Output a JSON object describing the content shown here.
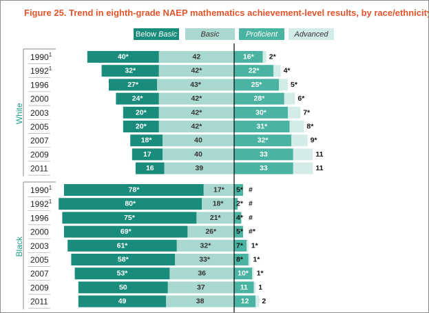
{
  "title": "Figure 25.  Trend in eighth-grade NAEP mathematics achievement-level results, by race/ethnicity",
  "legend": [
    {
      "label": "Below Basic",
      "label_plain": "Below ",
      "label_italic": "Basic",
      "color": "#1a8c7c",
      "text_color": "#ffffff"
    },
    {
      "label": "Basic",
      "color": "#a8d8d0",
      "text_color": "#333333"
    },
    {
      "label": "Proficient",
      "color": "#4bb3a2",
      "text_color": "#ffffff"
    },
    {
      "label": "Advanced",
      "color": "#d4ece8",
      "text_color": "#333333"
    }
  ],
  "colors": {
    "below_basic": "#1a8c7c",
    "basic": "#a8d8d0",
    "proficient": "#4bb3a2",
    "advanced": "#d4ece8",
    "title": "#e2542b",
    "group_label": "#1f9c8a",
    "axis_line": "#000000",
    "row_rule": "#9a9a9a"
  },
  "chart_data": {
    "type": "bar",
    "subtype": "diverging-stacked",
    "title": "Figure 25.  Trend in eighth-grade NAEP mathematics achievement-level results, by race/ethnicity",
    "series_order": [
      "Below Basic",
      "Basic",
      "Proficient",
      "Advanced"
    ],
    "groups": [
      {
        "name": "White",
        "rows": [
          {
            "year": "1990",
            "sup": "1",
            "below_basic": 40,
            "basic": 42,
            "proficient": 16,
            "advanced": 2,
            "labels": {
              "below_basic": "40*",
              "basic": "42",
              "proficient": "16*",
              "advanced": "2*"
            }
          },
          {
            "year": "1992",
            "sup": "1",
            "below_basic": 32,
            "basic": 42,
            "proficient": 22,
            "advanced": 4,
            "labels": {
              "below_basic": "32*",
              "basic": "42*",
              "proficient": "22*",
              "advanced": "4*"
            }
          },
          {
            "year": "1996",
            "sup": "",
            "below_basic": 27,
            "basic": 43,
            "proficient": 25,
            "advanced": 5,
            "labels": {
              "below_basic": "27*",
              "basic": "43*",
              "proficient": "25*",
              "advanced": "5*"
            }
          },
          {
            "year": "2000",
            "sup": "",
            "below_basic": 24,
            "basic": 42,
            "proficient": 28,
            "advanced": 6,
            "labels": {
              "below_basic": "24*",
              "basic": "42*",
              "proficient": "28*",
              "advanced": "6*"
            }
          },
          {
            "year": "2003",
            "sup": "",
            "below_basic": 20,
            "basic": 42,
            "proficient": 30,
            "advanced": 7,
            "labels": {
              "below_basic": "20*",
              "basic": "42*",
              "proficient": "30*",
              "advanced": "7*"
            }
          },
          {
            "year": "2005",
            "sup": "",
            "below_basic": 20,
            "basic": 42,
            "proficient": 31,
            "advanced": 8,
            "labels": {
              "below_basic": "20*",
              "basic": "42*",
              "proficient": "31*",
              "advanced": "8*"
            }
          },
          {
            "year": "2007",
            "sup": "",
            "below_basic": 18,
            "basic": 40,
            "proficient": 32,
            "advanced": 9,
            "labels": {
              "below_basic": "18*",
              "basic": "40",
              "proficient": "32*",
              "advanced": "9*"
            }
          },
          {
            "year": "2009",
            "sup": "",
            "below_basic": 17,
            "basic": 40,
            "proficient": 33,
            "advanced": 11,
            "labels": {
              "below_basic": "17",
              "basic": "40",
              "proficient": "33",
              "advanced": "11"
            }
          },
          {
            "year": "2011",
            "sup": "",
            "below_basic": 16,
            "basic": 39,
            "proficient": 33,
            "advanced": 11,
            "labels": {
              "below_basic": "16",
              "basic": "39",
              "proficient": "33",
              "advanced": "11"
            }
          }
        ]
      },
      {
        "name": "Black",
        "rows": [
          {
            "year": "1990",
            "sup": "1",
            "below_basic": 78,
            "basic": 17,
            "proficient": 5,
            "advanced": 0,
            "labels": {
              "below_basic": "78*",
              "basic": "17*",
              "proficient": "5*",
              "advanced": "#"
            }
          },
          {
            "year": "1992",
            "sup": "1",
            "below_basic": 80,
            "basic": 18,
            "proficient": 2,
            "advanced": 0,
            "labels": {
              "below_basic": "80*",
              "basic": "18*",
              "proficient": "2*",
              "advanced": "#"
            }
          },
          {
            "year": "1996",
            "sup": "",
            "below_basic": 75,
            "basic": 21,
            "proficient": 4,
            "advanced": 0,
            "labels": {
              "below_basic": "75*",
              "basic": "21*",
              "proficient": "4*",
              "advanced": "#"
            }
          },
          {
            "year": "2000",
            "sup": "",
            "below_basic": 69,
            "basic": 26,
            "proficient": 5,
            "advanced": 0,
            "labels": {
              "below_basic": "69*",
              "basic": "26*",
              "proficient": "5*",
              "advanced": "#*"
            }
          },
          {
            "year": "2003",
            "sup": "",
            "below_basic": 61,
            "basic": 32,
            "proficient": 7,
            "advanced": 1,
            "labels": {
              "below_basic": "61*",
              "basic": "32*",
              "proficient": "7*",
              "advanced": "1*"
            }
          },
          {
            "year": "2005",
            "sup": "",
            "below_basic": 58,
            "basic": 33,
            "proficient": 8,
            "advanced": 1,
            "labels": {
              "below_basic": "58*",
              "basic": "33*",
              "proficient": "8*",
              "advanced": "1*"
            }
          },
          {
            "year": "2007",
            "sup": "",
            "below_basic": 53,
            "basic": 36,
            "proficient": 10,
            "advanced": 1,
            "labels": {
              "below_basic": "53*",
              "basic": "36",
              "proficient": "10*",
              "advanced": "1*"
            }
          },
          {
            "year": "2009",
            "sup": "",
            "below_basic": 50,
            "basic": 37,
            "proficient": 11,
            "advanced": 1,
            "labels": {
              "below_basic": "50",
              "basic": "37",
              "proficient": "11",
              "advanced": "1"
            }
          },
          {
            "year": "2011",
            "sup": "",
            "below_basic": 49,
            "basic": 38,
            "proficient": 12,
            "advanced": 2,
            "labels": {
              "below_basic": "49",
              "basic": "38",
              "proficient": "12",
              "advanced": "2"
            }
          }
        ]
      }
    ],
    "axis": {
      "center": "boundary between Basic and Proficient",
      "grid": false
    },
    "legend_position": "top"
  }
}
